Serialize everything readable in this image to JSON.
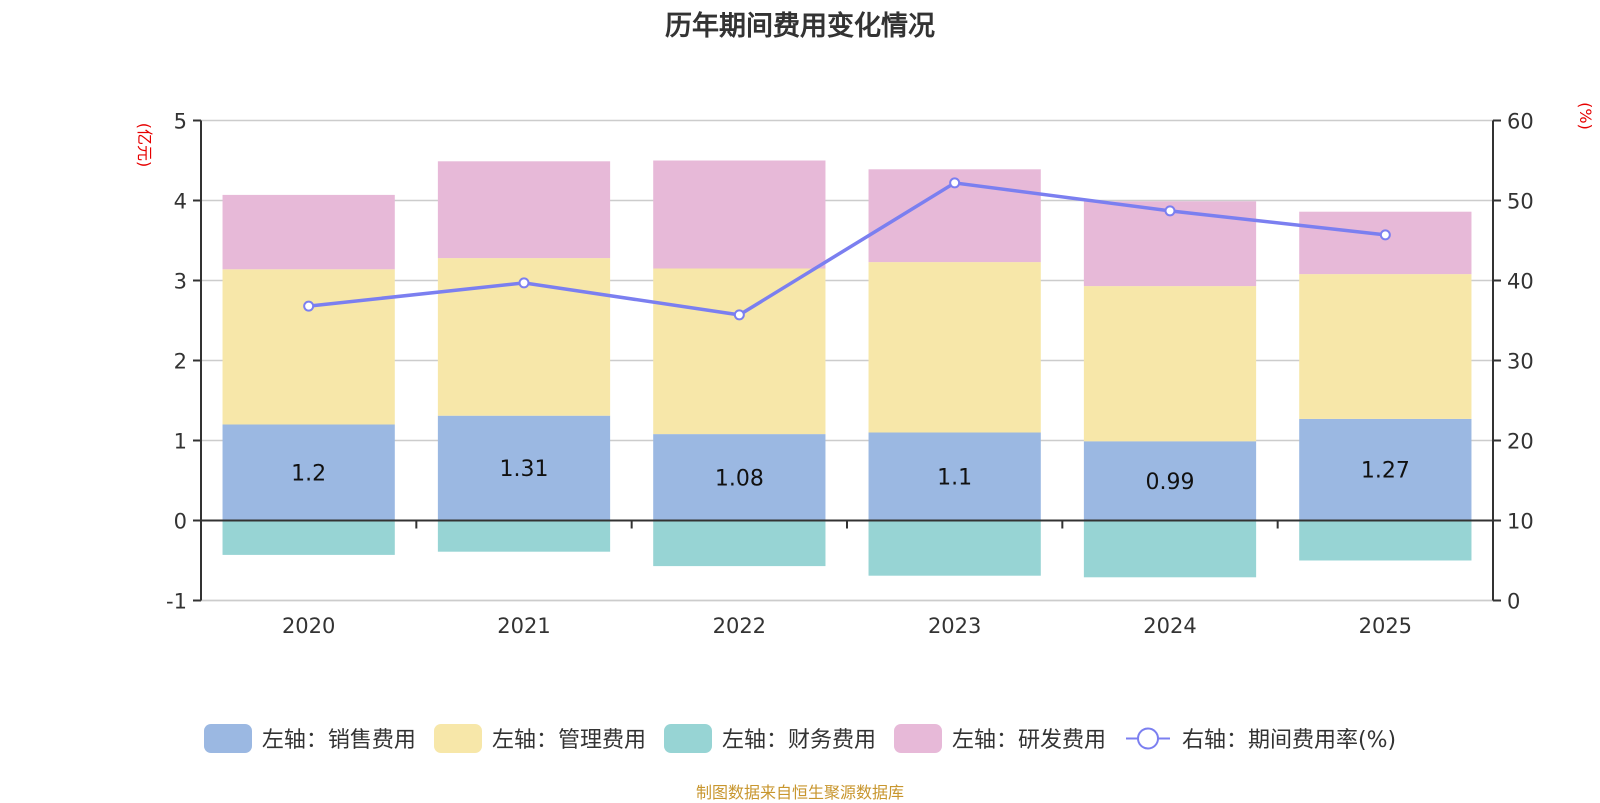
{
  "chart_data": {
    "type": "bar",
    "title": "历年期间费用变化情况",
    "categories": [
      "2020",
      "2021",
      "2022",
      "2023",
      "2024",
      "2025"
    ],
    "series": [
      {
        "name": "左轴：销售费用",
        "axis": "left",
        "stack": "total",
        "color": "#9bb8e2",
        "values": [
          1.2,
          1.31,
          1.08,
          1.1,
          0.99,
          1.27
        ],
        "labels": [
          "1.2",
          "1.31",
          "1.08",
          "1.1",
          "0.99",
          "1.27"
        ]
      },
      {
        "name": "左轴：管理费用",
        "axis": "left",
        "stack": "total",
        "color": "#f7e7a9",
        "values": [
          1.94,
          1.97,
          2.07,
          2.13,
          1.94,
          1.81
        ]
      },
      {
        "name": "左轴：财务费用",
        "axis": "left",
        "stack": "total",
        "color": "#97d4d4",
        "values": [
          -0.43,
          -0.39,
          -0.57,
          -0.69,
          -0.71,
          -0.5
        ]
      },
      {
        "name": "左轴：研发费用",
        "axis": "left",
        "stack": "total",
        "color": "#e7b9d8",
        "values": [
          0.93,
          1.21,
          1.35,
          1.16,
          1.06,
          0.78
        ]
      },
      {
        "name": "右轴：期间费用率(%)",
        "axis": "right",
        "type": "line",
        "color": "#7b7ff0",
        "values": [
          36.8,
          39.7,
          35.7,
          52.2,
          48.7,
          45.7
        ]
      }
    ],
    "left_axis": {
      "label": "(亿元)",
      "ylim": [
        -1,
        5
      ],
      "ticks": [
        "-1",
        "0",
        "1",
        "2",
        "3",
        "4",
        "5"
      ]
    },
    "right_axis": {
      "label": "(%)",
      "ylim": [
        0,
        60
      ],
      "ticks": [
        "0",
        "10",
        "20",
        "30",
        "40",
        "50",
        "60"
      ]
    },
    "grid": true,
    "legend_position": "bottom"
  },
  "footer": "制图数据来自恒生聚源数据库"
}
